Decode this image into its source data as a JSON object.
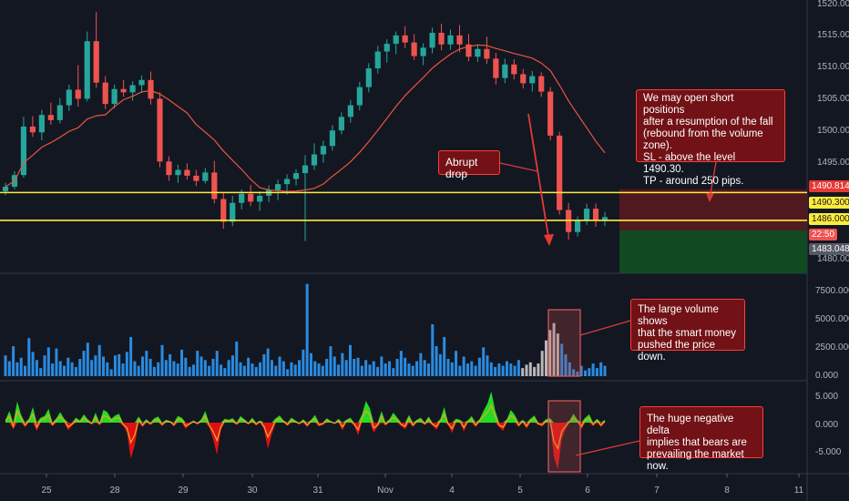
{
  "chart_data": [
    {
      "type": "candlestick",
      "instrument_hint": "gold-like price chart",
      "x_tick_labels": [
        "25",
        "28",
        "29",
        "30",
        "31",
        "Nov",
        "4",
        "5",
        "6",
        "7",
        "8",
        "11"
      ],
      "y_tick_labels": [
        "1520.000",
        "1515.000",
        "1510.000",
        "1505.000",
        "1500.000",
        "1495.000",
        "1486.000",
        "1480.000"
      ],
      "ylim": [
        1480,
        1520
      ],
      "grid": false,
      "levels": [
        {
          "value": 1490.3,
          "label": "1490.300",
          "color": "#ffeb3b"
        },
        {
          "value": 1486.0,
          "label": "1486.000",
          "color": "#ffeb3b"
        }
      ],
      "price_tags": [
        {
          "label": "1490.814",
          "color": "#e53935"
        },
        {
          "label": "1490.300",
          "color": "#ffeb3b"
        },
        {
          "label": "1486.000",
          "color": "#ffeb3b"
        },
        {
          "label": "22:50",
          "color": "#ef5350"
        },
        {
          "label": "1483.048",
          "color": "#555a66"
        }
      ],
      "moving_average": {
        "color": "#e8563a"
      },
      "candles": [
        [
          1490.5,
          1491.8,
          1489.9,
          1491.2
        ],
        [
          1491.2,
          1493.6,
          1490.8,
          1493.0
        ],
        [
          1493.0,
          1502.0,
          1492.6,
          1500.5
        ],
        [
          1500.5,
          1502.1,
          1498.9,
          1499.6
        ],
        [
          1499.6,
          1503.1,
          1498.4,
          1502.3
        ],
        [
          1502.3,
          1504.2,
          1500.8,
          1501.5
        ],
        [
          1501.5,
          1504.9,
          1501.0,
          1503.8
        ],
        [
          1503.8,
          1507.0,
          1502.9,
          1506.2
        ],
        [
          1506.2,
          1510.0,
          1503.6,
          1504.8
        ],
        [
          1504.8,
          1515.2,
          1504.4,
          1513.7
        ],
        [
          1513.7,
          1518.2,
          1506.5,
          1507.3
        ],
        [
          1507.3,
          1508.3,
          1503.2,
          1504.0
        ],
        [
          1504.0,
          1507.0,
          1503.3,
          1506.3
        ],
        [
          1506.3,
          1507.7,
          1505.1,
          1505.8
        ],
        [
          1505.8,
          1507.5,
          1504.5,
          1506.9
        ],
        [
          1506.9,
          1508.4,
          1505.7,
          1507.7
        ],
        [
          1507.7,
          1509.0,
          1503.9,
          1504.8
        ],
        [
          1504.8,
          1505.8,
          1494.2,
          1495.1
        ],
        [
          1495.1,
          1495.9,
          1492.1,
          1493.0
        ],
        [
          1493.0,
          1494.6,
          1491.8,
          1493.8
        ],
        [
          1493.8,
          1494.8,
          1492.3,
          1492.9
        ],
        [
          1492.9,
          1493.8,
          1491.3,
          1492.1
        ],
        [
          1492.1,
          1494.1,
          1491.7,
          1493.4
        ],
        [
          1493.4,
          1495.2,
          1488.6,
          1489.3
        ],
        [
          1489.3,
          1490.3,
          1484.7,
          1485.8
        ],
        [
          1485.8,
          1489.8,
          1485.1,
          1488.7
        ],
        [
          1488.7,
          1490.8,
          1487.7,
          1490.1
        ],
        [
          1490.1,
          1491.5,
          1488.2,
          1488.9
        ],
        [
          1488.9,
          1490.5,
          1487.5,
          1489.8
        ],
        [
          1489.8,
          1491.4,
          1488.8,
          1490.7
        ],
        [
          1490.7,
          1492.3,
          1489.1,
          1491.6
        ],
        [
          1491.6,
          1493.1,
          1490.0,
          1492.4
        ],
        [
          1492.4,
          1493.9,
          1491.4,
          1493.3
        ],
        [
          1493.3,
          1496.1,
          1482.8,
          1494.5
        ],
        [
          1494.5,
          1497.9,
          1493.8,
          1496.2
        ],
        [
          1496.2,
          1498.3,
          1494.9,
          1497.5
        ],
        [
          1497.5,
          1500.7,
          1496.8,
          1499.9
        ],
        [
          1499.9,
          1502.7,
          1499.3,
          1502.0
        ],
        [
          1502.0,
          1504.6,
          1501.1,
          1503.8
        ],
        [
          1503.8,
          1507.4,
          1503.0,
          1506.6
        ],
        [
          1506.6,
          1510.3,
          1505.8,
          1509.5
        ],
        [
          1509.5,
          1513.0,
          1508.7,
          1512.1
        ],
        [
          1512.1,
          1514.0,
          1510.4,
          1513.3
        ],
        [
          1513.3,
          1515.2,
          1511.7,
          1514.6
        ],
        [
          1514.6,
          1516.0,
          1512.6,
          1513.5
        ],
        [
          1513.5,
          1514.8,
          1510.8,
          1511.4
        ],
        [
          1511.4,
          1513.4,
          1510.0,
          1512.7
        ],
        [
          1512.7,
          1515.8,
          1511.8,
          1515.0
        ],
        [
          1515.0,
          1516.4,
          1512.3,
          1513.2
        ],
        [
          1513.2,
          1515.5,
          1512.4,
          1514.6
        ],
        [
          1514.6,
          1516.2,
          1512.0,
          1513.2
        ],
        [
          1513.2,
          1514.8,
          1510.6,
          1511.3
        ],
        [
          1511.3,
          1513.2,
          1510.5,
          1512.5
        ],
        [
          1512.5,
          1514.4,
          1510.2,
          1511.0
        ],
        [
          1511.0,
          1511.9,
          1507.0,
          1508.0
        ],
        [
          1508.0,
          1511.0,
          1507.2,
          1510.1
        ],
        [
          1510.1,
          1510.9,
          1507.8,
          1508.6
        ],
        [
          1508.6,
          1509.4,
          1506.4,
          1507.2
        ],
        [
          1507.2,
          1509.1,
          1505.9,
          1508.3
        ],
        [
          1508.3,
          1508.9,
          1505.1,
          1505.9
        ],
        [
          1505.9,
          1506.6,
          1498.4,
          1499.1
        ],
        [
          1499.1,
          1499.7,
          1486.9,
          1487.6
        ],
        [
          1487.6,
          1488.7,
          1483.0,
          1484.2
        ],
        [
          1484.2,
          1486.6,
          1483.5,
          1485.9
        ],
        [
          1485.9,
          1488.6,
          1485.3,
          1487.8
        ],
        [
          1487.8,
          1488.6,
          1485.0,
          1486.1
        ],
        [
          1486.1,
          1487.3,
          1485.1,
          1486.5
        ]
      ],
      "annotations": [
        {
          "name": "abrupt-drop",
          "text": "Abrupt drop"
        },
        {
          "name": "short-plan",
          "lines": [
            "We may open short positions",
            "after a resumption of the fall",
            "(rebound from the volume zone).",
            "SL - above the level 1490.30.",
            "TP - around 250 pips."
          ]
        }
      ]
    },
    {
      "type": "bar",
      "series": [
        {
          "name": "Volume",
          "color": "#2a8be0",
          "highlight_color": "#b8b8b8"
        }
      ],
      "y_tick_labels": [
        "7500.000",
        "5000.000",
        "2500.000",
        "0.000"
      ],
      "ylim": [
        0,
        8600
      ],
      "values": [
        1800,
        1300,
        2600,
        1200,
        1600,
        900,
        3300,
        2100,
        1400,
        700,
        1800,
        2500,
        1100,
        2400,
        1300,
        900,
        1600,
        1200,
        800,
        1500,
        2200,
        2900,
        1400,
        1800,
        2700,
        1700,
        1200,
        600,
        1800,
        1900,
        1100,
        2100,
        3400,
        1300,
        900,
        1700,
        2200,
        1500,
        800,
        1200,
        2700,
        1400,
        1900,
        1300,
        1100,
        2300,
        1600,
        800,
        1000,
        2200,
        1700,
        1400,
        900,
        1500,
        2200,
        1000,
        700,
        1400,
        1800,
        3000,
        1200,
        900,
        1600,
        1100,
        800,
        1200,
        1900,
        2400,
        1400,
        900,
        1700,
        1300,
        600,
        1200,
        1000,
        1400,
        2300,
        8000,
        2000,
        1300,
        1100,
        900,
        1500,
        2600,
        1700,
        1000,
        2000,
        1400,
        2700,
        1500,
        1600,
        900,
        1400,
        1000,
        1300,
        800,
        1700,
        1100,
        1300,
        700,
        1500,
        2200,
        1600,
        1100,
        900,
        1300,
        2000,
        1400,
        1100,
        4500,
        2600,
        1900,
        3400,
        1500,
        1200,
        2200,
        900,
        1700,
        1100,
        1300,
        900,
        1600,
        2500,
        1800,
        1200,
        800,
        1100,
        900,
        1300,
        1100,
        900,
        1400,
        700,
        1000,
        1200,
        800,
        1100,
        2200,
        3100,
        4000,
        4600,
        3700,
        2800,
        1900,
        1200,
        600,
        400,
        900,
        500,
        700,
        1100,
        700,
        1200,
        900
      ],
      "highlight_range": [
        132,
        141
      ],
      "annotation": {
        "name": "volume-note",
        "lines": [
          "The large volume shows",
          "that the smart money",
          "pushed the price down."
        ]
      }
    },
    {
      "type": "area",
      "series": [
        {
          "name": "Delta",
          "positive_color": "#22dd22",
          "negative_color": "#dd1111"
        },
        {
          "name": "Delta line",
          "color": "#e6a030"
        }
      ],
      "y_tick_labels": [
        "5.000",
        "0.000",
        "-5.000"
      ],
      "ylim": [
        -9,
        6.5
      ],
      "values": [
        0.5,
        2.1,
        -1.2,
        3.8,
        1.4,
        -0.8,
        0.7,
        2.8,
        -1.5,
        0.9,
        1.2,
        2.5,
        -0.6,
        0.8,
        1.9,
        0.7,
        -1.4,
        -0.5,
        0.9,
        0.4,
        1.5,
        0.6,
        -0.3,
        1.8,
        -0.4,
        2.3,
        1.9,
        0.7,
        1.3,
        1.6,
        -0.5,
        -1.7,
        -6.5,
        -4.1,
        1.1,
        -0.8,
        0.6,
        -0.4,
        0.8,
        1.1,
        -0.6,
        0.5,
        0.3,
        -0.7,
        1.2,
        0.9,
        -1.1,
        -0.4,
        0.4,
        -0.3,
        0.6,
        2.1,
        -0.8,
        -2.9,
        -5.8,
        -1.3,
        0.7,
        0.5,
        0.8,
        -0.4,
        1.2,
        0.6,
        -0.3,
        0.9,
        -0.5,
        0.4,
        -1.2,
        -4.7,
        -2.1,
        0.8,
        1.3,
        0.4,
        -0.6,
        0.9,
        0.4,
        -0.3,
        0.6,
        -0.8,
        0.5,
        1.4,
        -0.7,
        -0.4,
        0.8,
        0.3,
        -0.2,
        0.7,
        -1.4,
        0.5,
        0.9,
        -0.5,
        -2.3,
        1.5,
        3.9,
        2.6,
        -1.8,
        -0.7,
        2.1,
        -0.5,
        0.6,
        1.8,
        0.9,
        -0.6,
        -1.2,
        1.4,
        -0.8,
        0.5,
        0.9,
        -0.4,
        1.1,
        -0.5,
        -1.3,
        0.6,
        2.8,
        -0.4,
        -1.9,
        0.7,
        0.5,
        -1.6,
        0.4,
        1.2,
        -0.8,
        0.6,
        2.1,
        3.4,
        5.6,
        2.2,
        -0.8,
        -1.5,
        0.6,
        2.3,
        1.4,
        -0.8,
        0.5,
        -1.1,
        0.7,
        1.3,
        -0.4,
        -0.7,
        0.6,
        0.8,
        -6.2,
        -8.4,
        -2.9,
        -1.1,
        0.4,
        1.6,
        0.5,
        -1.2,
        0.9,
        1.5,
        -0.6,
        0.7,
        -0.8,
        0.5
      ],
      "highlight_range": [
        132,
        141
      ],
      "annotation": {
        "name": "delta-note",
        "lines": [
          "The huge negative delta",
          "implies that bears are",
          "prevailing the market now."
        ]
      }
    }
  ]
}
